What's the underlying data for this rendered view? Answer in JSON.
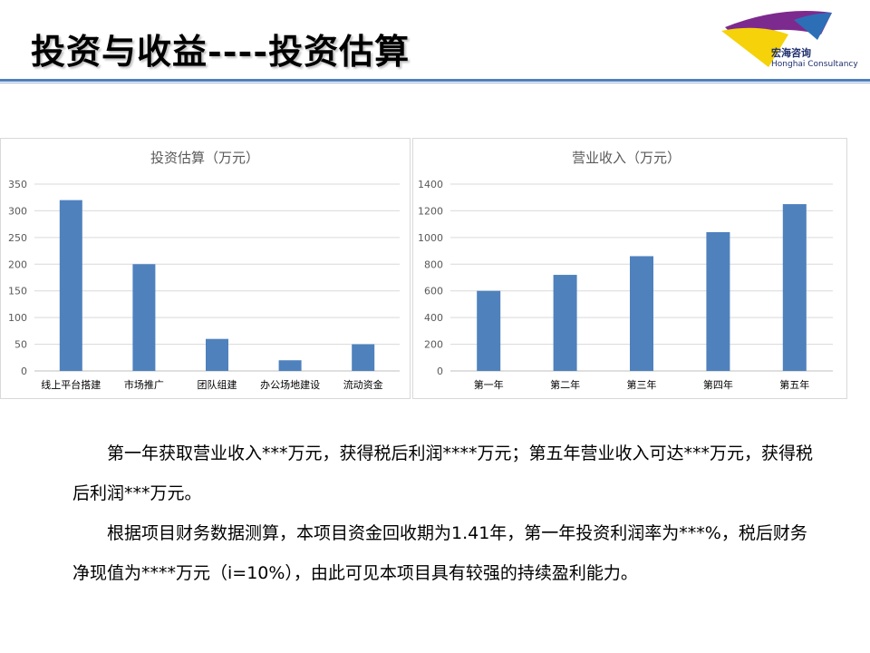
{
  "header": {
    "title": "投资与收益----投资估算"
  },
  "logo": {
    "name_cn": "宏海咨询",
    "name_en": "Honghai Consultancy",
    "colors": {
      "purple": "#7d2a8f",
      "yellow": "#f5d20a",
      "blue": "#2d6fb7"
    }
  },
  "chart_data": [
    {
      "type": "bar",
      "title": "投资估算（万元）",
      "categories": [
        "线上平台搭建",
        "市场推广",
        "团队组建",
        "办公场地建设",
        "流动资金"
      ],
      "values": [
        320,
        200,
        60,
        20,
        50
      ],
      "ylim": [
        0,
        350
      ],
      "yticks": [
        0,
        50,
        100,
        150,
        200,
        250,
        300,
        350
      ],
      "grid": true,
      "bar_color": "#4f81bd"
    },
    {
      "type": "bar",
      "title": "营业收入（万元）",
      "categories": [
        "第一年",
        "第二年",
        "第三年",
        "第四年",
        "第五年"
      ],
      "values": [
        600,
        720,
        860,
        1040,
        1250
      ],
      "ylim": [
        0,
        1400
      ],
      "yticks": [
        0,
        200,
        400,
        600,
        800,
        1000,
        1200,
        1400
      ],
      "grid": true,
      "bar_color": "#4f81bd"
    }
  ],
  "body": {
    "paragraph1": "第一年获取营业收入***万元，获得税后利润****万元；第五年营业收入可达***万元，获得税后利润***万元。",
    "paragraph2": "根据项目财务数据测算，本项目资金回收期为1.41年，第一年投资利润率为***%，税后财务净现值为****万元（i=10%），由此可见本项目具有较强的持续盈利能力。"
  }
}
